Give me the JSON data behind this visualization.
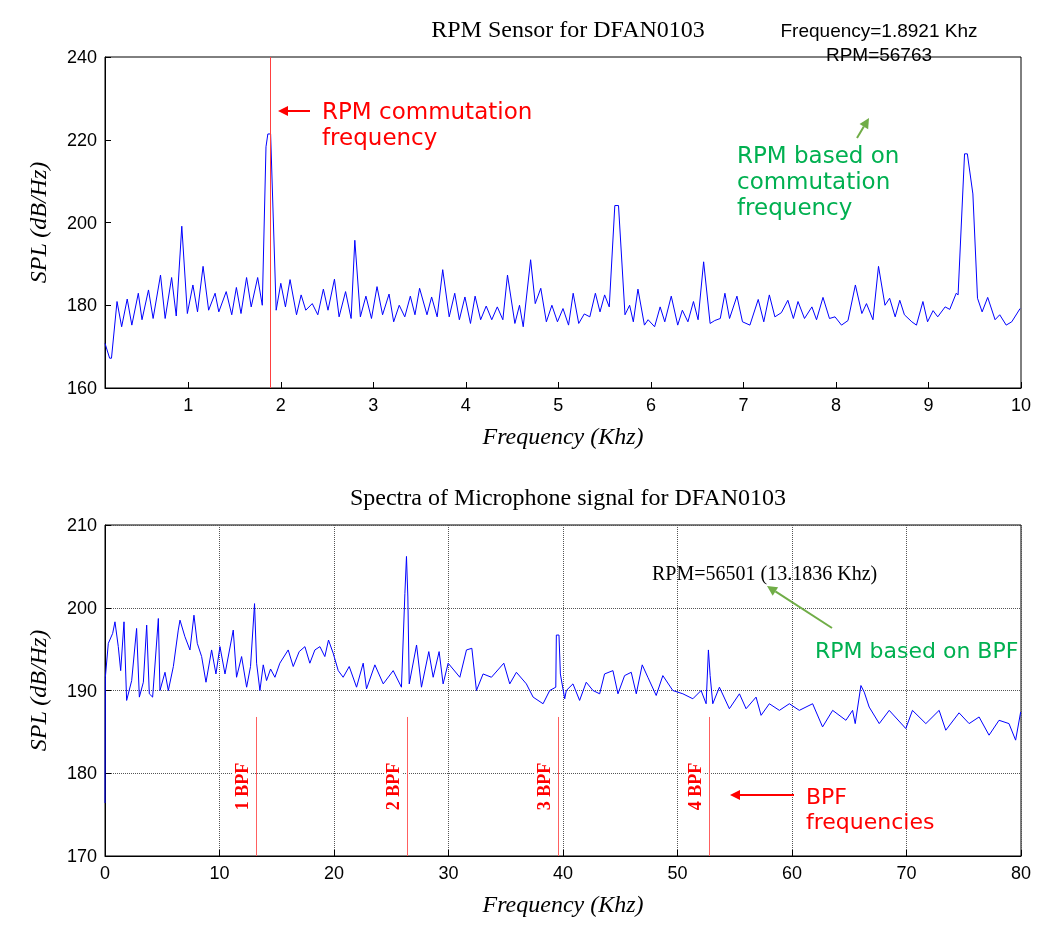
{
  "chart_data": [
    {
      "type": "line",
      "title": "RPM Sensor for DFAN0103",
      "xlabel": "Frequency (Khz)",
      "ylabel": "SPL (dB/Hz)",
      "xlim": [
        0.1,
        10
      ],
      "xticks": [
        1,
        2,
        3,
        4,
        5,
        6,
        7,
        8,
        9,
        10
      ],
      "ylim": [
        160,
        240
      ],
      "yticks": [
        160,
        180,
        200,
        220,
        240
      ],
      "marker": "none",
      "annotations": [
        "Frequency=1.8921 Khz",
        "RPM=56763",
        "RPM commutation frequency",
        "RPM based on commutation frequency"
      ],
      "ref_lines": [
        {
          "axis": "x",
          "value": 1.8921,
          "color": "#ff4040"
        }
      ],
      "series": [
        {
          "color": "#0000ff",
          "x": [
            0.1,
            0.15,
            0.17,
            0.23,
            0.28,
            0.34,
            0.39,
            0.46,
            0.5,
            0.57,
            0.62,
            0.7,
            0.75,
            0.82,
            0.87,
            0.93,
            0.99,
            1.05,
            1.1,
            1.16,
            1.22,
            1.29,
            1.33,
            1.41,
            1.47,
            1.52,
            1.57,
            1.63,
            1.68,
            1.75,
            1.8,
            1.84,
            1.86,
            1.89,
            1.95,
            2.0,
            2.05,
            2.1,
            2.17,
            2.22,
            2.27,
            2.34,
            2.4,
            2.46,
            2.51,
            2.58,
            2.63,
            2.7,
            2.76,
            2.8,
            2.86,
            2.92,
            2.98,
            3.04,
            3.1,
            3.17,
            3.22,
            3.28,
            3.34,
            3.4,
            3.45,
            3.5,
            3.58,
            3.63,
            3.69,
            3.75,
            3.82,
            3.88,
            3.93,
            3.99,
            4.05,
            4.1,
            4.16,
            4.22,
            4.28,
            4.34,
            4.4,
            4.45,
            4.53,
            4.58,
            4.62,
            4.7,
            4.75,
            4.81,
            4.87,
            4.93,
            4.99,
            5.05,
            5.11,
            5.16,
            5.22,
            5.28,
            5.34,
            5.4,
            5.45,
            5.5,
            5.55,
            5.61,
            5.65,
            5.72,
            5.77,
            5.81,
            5.86,
            5.93,
            5.97,
            6.04,
            6.1,
            6.15,
            6.22,
            6.29,
            6.34,
            6.4,
            6.46,
            6.51,
            6.57,
            6.64,
            6.69,
            6.75,
            6.8,
            6.85,
            6.93,
            6.99,
            7.07,
            7.16,
            7.22,
            7.28,
            7.34,
            7.41,
            7.48,
            7.54,
            7.59,
            7.66,
            7.74,
            7.79,
            7.86,
            7.93,
            7.99,
            8.06,
            8.13,
            8.21,
            8.28,
            8.33,
            8.4,
            8.46,
            8.53,
            8.58,
            8.64,
            8.69,
            8.74,
            8.82,
            8.87,
            8.94,
            8.99,
            9.05,
            9.1,
            9.18,
            9.23,
            9.3,
            9.32,
            9.39,
            9.42,
            9.48,
            9.53,
            9.58,
            9.64,
            9.72,
            9.77,
            9.84,
            9.9,
            9.99
          ],
          "values": [
            170.8,
            167.2,
            167.2,
            180.9,
            174.8,
            181.5,
            175.2,
            182.9,
            176.5,
            183.7,
            176.8,
            187.3,
            176.8,
            186.7,
            177.4,
            199.1,
            178,
            184.9,
            178.4,
            189.4,
            178.8,
            182.9,
            178.4,
            183.3,
            177.7,
            184.3,
            178,
            186.7,
            179.6,
            186.7,
            180,
            218.3,
            221.4,
            221.4,
            178.8,
            185.3,
            179.6,
            186.2,
            177.7,
            182.5,
            178.8,
            180.4,
            177.7,
            183.9,
            178.8,
            186.3,
            177.2,
            183.3,
            176.8,
            195.7,
            177.2,
            182.2,
            176.8,
            184.5,
            177.7,
            182.7,
            176,
            180,
            177.2,
            182.2,
            177.7,
            184.1,
            177.7,
            182,
            177.2,
            188.6,
            177.2,
            182.9,
            176.5,
            182,
            175.6,
            182.2,
            176.5,
            179.8,
            176.5,
            179.6,
            176.5,
            187.3,
            175.6,
            180,
            174.8,
            191,
            180.4,
            184.1,
            176,
            180,
            176,
            179.2,
            175.2,
            182.9,
            175.6,
            177.9,
            177.2,
            182.9,
            178.4,
            182.5,
            179.6,
            204.1,
            204.1,
            177.7,
            180,
            176,
            183.9,
            175.2,
            176.5,
            174.8,
            179.6,
            176,
            182.2,
            175.2,
            178.8,
            176,
            180.9,
            176.5,
            190.5,
            175.6,
            176.3,
            176.8,
            182.9,
            176.8,
            182.2,
            176,
            175.2,
            181.4,
            176,
            182.5,
            177.2,
            178.2,
            181.2,
            176.8,
            180.9,
            176.8,
            179.6,
            176.5,
            181.9,
            176.8,
            177.2,
            175.2,
            176.3,
            184.9,
            178,
            180.4,
            176.5,
            189.4,
            180,
            181.7,
            177.2,
            181.2,
            177.7,
            176,
            175.2,
            180.9,
            176,
            178.7,
            177.2,
            179.6,
            179,
            182.9,
            182.5,
            216.6,
            216.6,
            206.9,
            181.7,
            178.4,
            181.9,
            176.5,
            177.7,
            175.2,
            176,
            179.2
          ]
        }
      ]
    },
    {
      "type": "line",
      "title": "Spectra of Microphone signal for DFAN0103",
      "xlabel": "Frequency (Khz)",
      "ylabel": "SPL (dB/Hz)",
      "xlim": [
        0,
        80
      ],
      "xticks": [
        0,
        10,
        20,
        30,
        40,
        50,
        60,
        70,
        80
      ],
      "ylim": [
        170,
        210
      ],
      "yticks": [
        170,
        180,
        190,
        200,
        210
      ],
      "grid": true,
      "marker": "none",
      "annotations": [
        "RPM=56501 (13.1836 Khz)",
        "RPM based on BPF",
        "BPF frequencies"
      ],
      "ref_lines": [
        {
          "axis": "x",
          "value": 13.18,
          "label": "1 BPF",
          "color": "#ff6060"
        },
        {
          "axis": "x",
          "value": 26.37,
          "label": "2 BPF",
          "color": "#ff6060"
        },
        {
          "axis": "x",
          "value": 39.55,
          "label": "3 BPF",
          "color": "#ff6060"
        },
        {
          "axis": "x",
          "value": 52.73,
          "label": "4 BPF",
          "color": "#ff6060"
        }
      ],
      "series": [
        {
          "color": "#0000ff",
          "x": [
            0,
            0.03,
            0.29,
            0.67,
            0.87,
            1.16,
            1.37,
            1.66,
            1.89,
            2.33,
            2.76,
            3.0,
            3.35,
            3.64,
            3.87,
            4.16,
            4.66,
            4.8,
            5.24,
            5.53,
            5.97,
            6.4,
            6.55,
            6.98,
            7.42,
            7.77,
            8.06,
            8.44,
            8.82,
            9.31,
            9.69,
            10.04,
            10.48,
            11.2,
            11.49,
            11.93,
            12.37,
            12.71,
            13.06,
            13.24,
            13.53,
            13.82,
            14.11,
            14.46,
            14.84,
            15.27,
            16.0,
            16.44,
            16.96,
            17.46,
            17.89,
            18.33,
            18.77,
            19.2,
            19.52,
            19.93,
            20.37,
            20.8,
            21.33,
            21.97,
            22.55,
            22.84,
            23.57,
            24.3,
            25.17,
            25.89,
            26.19,
            26.33,
            26.45,
            26.57,
            27.21,
            27.64,
            28.28,
            28.66,
            29.18,
            29.53,
            29.97,
            30.99,
            31.57,
            32.04,
            32.44,
            33.02,
            33.75,
            34.83,
            35.35,
            35.93,
            36.8,
            37.39,
            38.26,
            38.84,
            39.37,
            39.42,
            39.65,
            39.77,
            40.15,
            40.29,
            40.87,
            41.45,
            42.03,
            42.62,
            43.2,
            43.63,
            44.36,
            44.8,
            45.38,
            45.96,
            46.4,
            46.92,
            47.41,
            48.14,
            48.72,
            49.59,
            50.47,
            51.34,
            52.06,
            52.5,
            52.7,
            52.85,
            53.08,
            53.66,
            54.53,
            55.41,
            55.99,
            56.86,
            57.3,
            58.02,
            58.9,
            59.77,
            60.64,
            61.8,
            62.67,
            63.55,
            64.71,
            65.29,
            65.52,
            66.02,
            66.31,
            66.74,
            67.62,
            68.49,
            69.94,
            70.52,
            71.69,
            72.85,
            73.43,
            74.59,
            75.47,
            76.34,
            77.21,
            78.08,
            78.95,
            79.53,
            79.97
          ],
          "values": [
            176.4,
            191.6,
            195.7,
            196.9,
            198.3,
            195.3,
            192.4,
            198.3,
            188.8,
            191.2,
            197.5,
            189.2,
            191,
            197.9,
            189.6,
            189.2,
            198.7,
            190,
            192.2,
            190,
            192.9,
            197.3,
            198.5,
            196.5,
            194.9,
            199.1,
            195.7,
            194.1,
            191,
            194.9,
            192,
            195.3,
            192,
            197.3,
            191.6,
            194.1,
            190.4,
            192.9,
            200.5,
            193.3,
            190,
            193.1,
            191.2,
            192.6,
            191.6,
            193.3,
            194.9,
            192.9,
            194.7,
            195.3,
            193.3,
            194.9,
            195.3,
            194.1,
            196.1,
            194.5,
            192.4,
            191.6,
            192.9,
            190.4,
            193.3,
            190.2,
            193.1,
            190.8,
            192.4,
            190.4,
            201.7,
            206.2,
            201.3,
            190.8,
            195.5,
            190.4,
            194.7,
            191.6,
            194.7,
            190.8,
            193.3,
            191.6,
            194.9,
            195.1,
            190,
            192,
            191.6,
            193.3,
            190.8,
            192.2,
            190.8,
            189.2,
            188.4,
            190,
            190.4,
            196.7,
            196.7,
            192,
            189,
            190,
            190.8,
            188.8,
            191,
            190,
            189.6,
            192,
            192.4,
            189.6,
            191.8,
            192.2,
            189.6,
            193.1,
            191.6,
            189.4,
            191.8,
            190,
            189.6,
            189,
            190,
            188.4,
            194.9,
            191.8,
            188.4,
            190.4,
            187.8,
            189.6,
            187.8,
            189.2,
            187,
            188.4,
            187.6,
            188.4,
            187.6,
            188.4,
            185.6,
            187.6,
            186.4,
            187.6,
            186,
            190.6,
            189.8,
            188,
            186,
            187.6,
            185.4,
            187.6,
            186,
            187.6,
            185.2,
            187.3,
            186,
            186.8,
            184.6,
            186.4,
            186,
            184,
            187.4
          ]
        }
      ]
    }
  ]
}
